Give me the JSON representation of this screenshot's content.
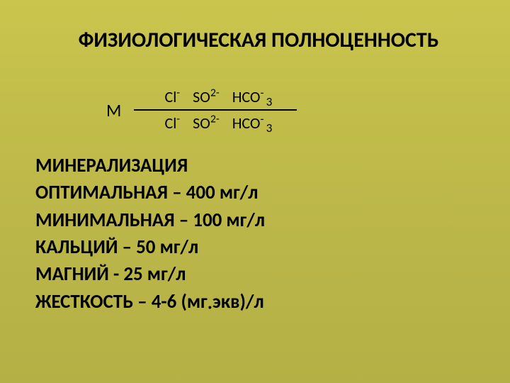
{
  "title": "ФИЗИОЛОГИЧЕСКАЯ ПОЛНОЦЕННОСТЬ",
  "formula": {
    "symbol": "М",
    "ions": {
      "cl_base": "Cl",
      "cl_sup": "-",
      "so_base": "SO",
      "so_sup": "2-",
      "hco_base": "HCO",
      "hco_sup": "-",
      "hco_sub": "3"
    }
  },
  "lines": {
    "l1": "МИНЕРАЛИЗАЦИЯ",
    "l2": "ОПТИМАЛЬНАЯ – 400 мг/л",
    "l3": "МИНИМАЛЬНАЯ – 100 мг/л",
    "l4": "КАЛЬЦИЙ – 50 мг/л",
    "l5": "МАГНИЙ  - 25 мг/л",
    "l6_a": "ЖЕСТКОСТЬ – 4-6 (мг",
    "l6_b": "экв)/л"
  },
  "dot": "."
}
